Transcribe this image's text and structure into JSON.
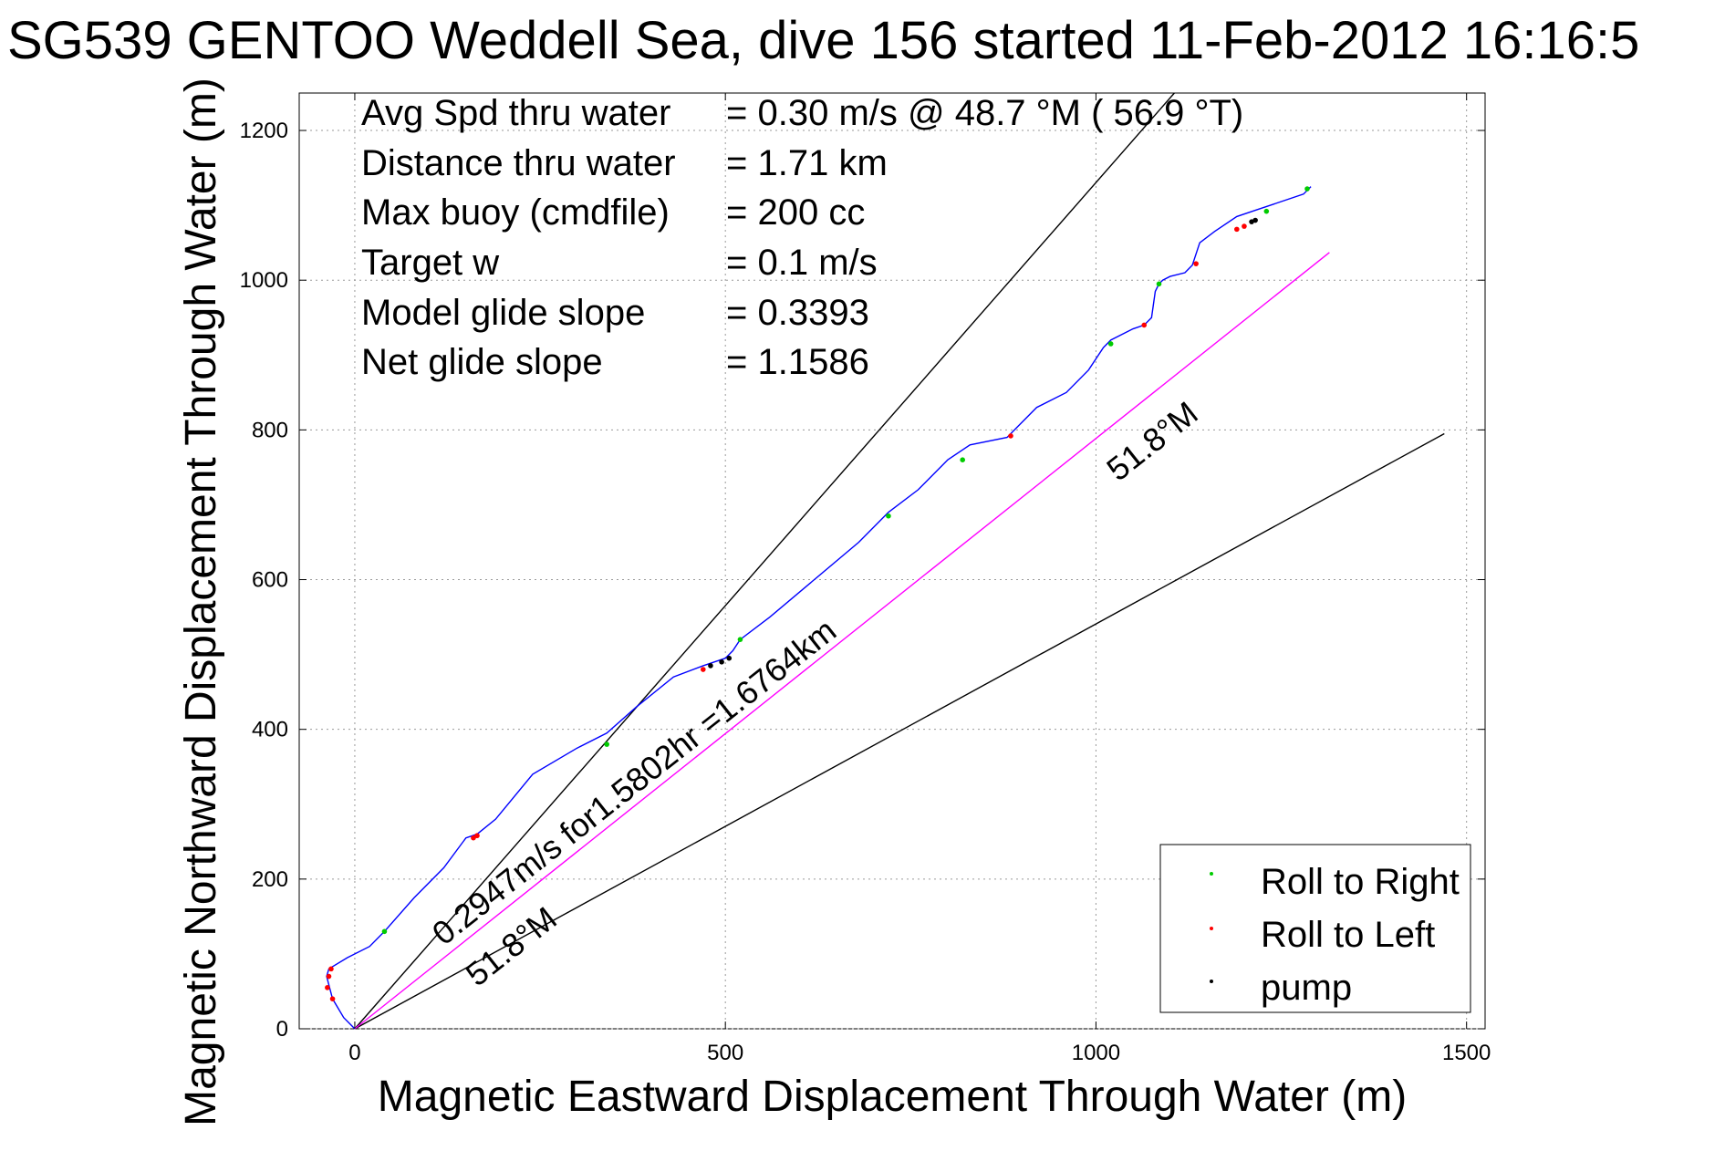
{
  "chart_data": {
    "type": "line",
    "title": "SG539 GENTOO Weddell Sea, dive 156 started 11-Feb-2012 16:16:5",
    "xlabel": "Magnetic Eastward Displacement Through Water (m)",
    "ylabel": "Magnetic Northward Displacement Through Water (m)",
    "xlim": [
      -75,
      1525
    ],
    "ylim": [
      0,
      1250
    ],
    "x_ticks": [
      0,
      500,
      1000,
      1500
    ],
    "y_ticks": [
      0,
      200,
      400,
      600,
      800,
      1000,
      1200
    ],
    "grid": true,
    "stats": [
      {
        "label": "Avg Spd thru water",
        "value": "=  0.30 m/s @  48.7 °M ( 56.9 °T)"
      },
      {
        "label": "Distance thru water",
        "value": "=  1.71 km"
      },
      {
        "label": "Max buoy (cmdfile)",
        "value": "= 200 cc"
      },
      {
        "label": "Target w",
        "value": "= 0.1 m/s"
      },
      {
        "label": "Model glide slope",
        "value": "= 0.3393"
      },
      {
        "label": "Net glide slope",
        "value": "= 1.1586"
      }
    ],
    "series": [
      {
        "color": "#0000ff",
        "x": [
          0,
          -15,
          -30,
          -38,
          -35,
          -10,
          20,
          40,
          80,
          120,
          150,
          165,
          190,
          240,
          300,
          340,
          380,
          430,
          470,
          485,
          500,
          510,
          520,
          560,
          620,
          680,
          710,
          720,
          760,
          800,
          830,
          880,
          890,
          920,
          960,
          990,
          1010,
          1020,
          1050,
          1065,
          1075,
          1080,
          1085,
          1090,
          1100,
          1120,
          1130,
          1140,
          1160,
          1190,
          1220,
          1250,
          1280,
          1290
        ],
        "y": [
          0,
          15,
          40,
          70,
          80,
          95,
          110,
          130,
          175,
          215,
          255,
          260,
          280,
          340,
          375,
          395,
          430,
          470,
          485,
          490,
          495,
          505,
          520,
          550,
          600,
          650,
          680,
          690,
          720,
          760,
          780,
          790,
          800,
          830,
          850,
          880,
          910,
          920,
          935,
          940,
          950,
          985,
          995,
          1000,
          1005,
          1010,
          1020,
          1050,
          1065,
          1085,
          1095,
          1105,
          1115,
          1125
        ]
      }
    ],
    "reference_lines": [
      {
        "color": "#000000",
        "x": [
          0,
          1150
        ],
        "y": [
          0,
          1300
        ]
      },
      {
        "color": "#000000",
        "x": [
          0,
          1470
        ],
        "y": [
          0,
          795
        ]
      },
      {
        "color": "#ff00ff",
        "x": [
          0,
          1315
        ],
        "y": [
          0,
          1037
        ]
      }
    ],
    "marker_points": [
      {
        "series": "Roll to Right",
        "color": "#00cc00",
        "x": [
          40,
          340,
          520,
          720,
          820,
          1020,
          1085,
          1230,
          1285
        ],
        "y": [
          130,
          380,
          520,
          685,
          760,
          915,
          995,
          1092,
          1122
        ]
      },
      {
        "series": "Roll to Left",
        "color": "#ff0000",
        "x": [
          -30,
          -37,
          -35,
          -32,
          160,
          165,
          470,
          885,
          1065,
          1135,
          1190,
          1200
        ],
        "y": [
          40,
          55,
          70,
          80,
          255,
          258,
          480,
          792,
          940,
          1022,
          1068,
          1072
        ]
      },
      {
        "series": "pump",
        "color": "#000000",
        "x": [
          480,
          495,
          505,
          1210,
          1215
        ],
        "y": [
          485,
          490,
          495,
          1078,
          1080
        ]
      }
    ],
    "annotations": [
      {
        "text": "0.2947m/s for1.5802hr =1.6764km",
        "x": 120,
        "y": 110,
        "angle_deg": 38.3
      },
      {
        "text": "51.8°M",
        "x": 165,
        "y": 55,
        "angle_deg": 38.3
      },
      {
        "text": "51.8°M",
        "x": 1030,
        "y": 730,
        "angle_deg": 38.3
      }
    ],
    "legend": {
      "placement": "bottom-right",
      "entries": [
        {
          "label": "Roll to Right",
          "color": "#00cc00"
        },
        {
          "label": "Roll to Left",
          "color": "#ff0000"
        },
        {
          "label": "pump",
          "color": "#000000"
        }
      ]
    }
  }
}
